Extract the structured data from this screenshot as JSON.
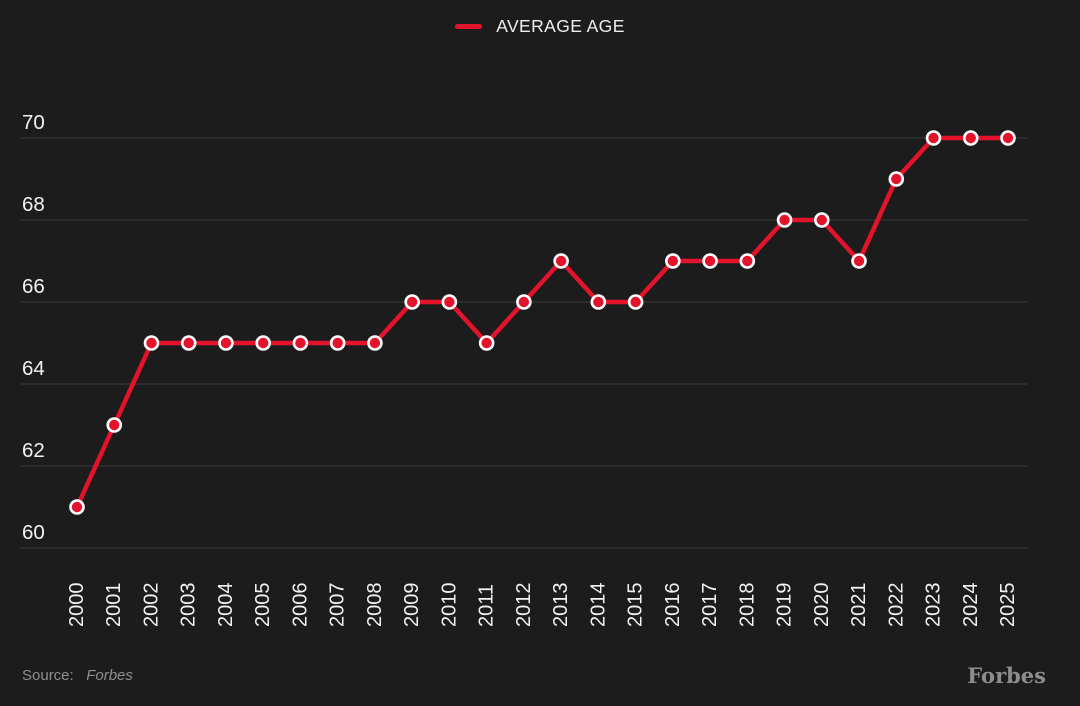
{
  "legend": {
    "label": "AVERAGE AGE"
  },
  "chart_data": {
    "type": "line",
    "title": "",
    "x": [
      "2000",
      "2001",
      "2002",
      "2003",
      "2004",
      "2005",
      "2006",
      "2007",
      "2008",
      "2009",
      "2010",
      "2011",
      "2012",
      "2013",
      "2014",
      "2015",
      "2016",
      "2017",
      "2018",
      "2019",
      "2020",
      "2021",
      "2022",
      "2023",
      "2024",
      "2025"
    ],
    "series": [
      {
        "name": "AVERAGE AGE",
        "values": [
          61,
          63,
          65,
          65,
          65,
          65,
          65,
          65,
          65,
          66,
          66,
          65,
          66,
          67,
          66,
          66,
          67,
          67,
          67,
          68,
          68,
          67,
          69,
          70,
          70,
          70
        ]
      }
    ],
    "xlabel": "",
    "ylabel": "",
    "ylim": [
      60,
      70
    ],
    "yticks": [
      60,
      62,
      64,
      66,
      68,
      70
    ],
    "grid": true,
    "legend_position": "top-center",
    "marker": "circle"
  },
  "footer": {
    "source_prefix": "Source:",
    "source_name": "Forbes",
    "brand": "Forbes"
  },
  "colors": {
    "background": "#1c1c1c",
    "line": "#e3132b",
    "marker_fill": "#e3132b",
    "marker_ring": "#ffffff",
    "grid": "#3a3a3a",
    "text": "#f2f2f2",
    "muted": "#8f8f8f"
  }
}
